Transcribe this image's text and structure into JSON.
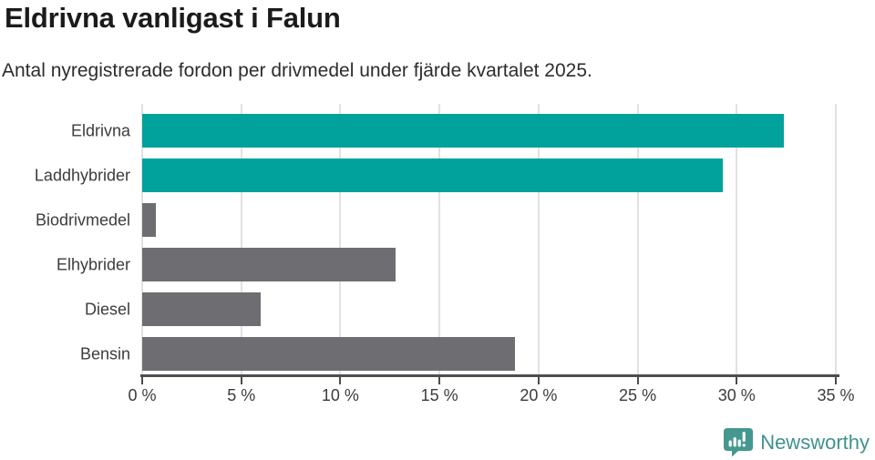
{
  "header": {
    "title": "Eldrivna vanligast i Falun",
    "subtitle": "Antal nyregistrerade fordon per drivmedel under fjärde kvartalet 2025."
  },
  "chart_data": {
    "type": "bar",
    "orientation": "horizontal",
    "title": "Eldrivna vanligast i Falun",
    "subtitle": "Antal nyregistrerade fordon per drivmedel under fjärde kvartalet 2025.",
    "categories": [
      "Eldrivna",
      "Laddhybrider",
      "Biodrivmedel",
      "Elhybrider",
      "Diesel",
      "Bensin"
    ],
    "values": [
      32.4,
      29.3,
      0.7,
      12.8,
      6.0,
      18.8
    ],
    "unit": "%",
    "xlim": [
      0,
      35
    ],
    "x_ticks": [
      0,
      5,
      10,
      15,
      20,
      25,
      30,
      35
    ],
    "x_tick_labels": [
      "0 %",
      "5 %",
      "10 %",
      "15 %",
      "20 %",
      "25 %",
      "30 %",
      "35 %"
    ],
    "bar_colors": [
      "#00a29b",
      "#00a29b",
      "#6e6d72",
      "#6e6d72",
      "#6e6d72",
      "#6e6d72"
    ],
    "grid": true,
    "legend": "none",
    "colors": {
      "accent_teal": "#00a29b",
      "neutral_gray": "#6e6d72",
      "gridline": "#e2e2e2",
      "axis": "#4d4d4d"
    }
  },
  "footer": {
    "brand": "Newsworthy",
    "brand_color": "#3f938d",
    "logo_icon": "newsworthy-speech-bubble-bar-chart-icon"
  }
}
